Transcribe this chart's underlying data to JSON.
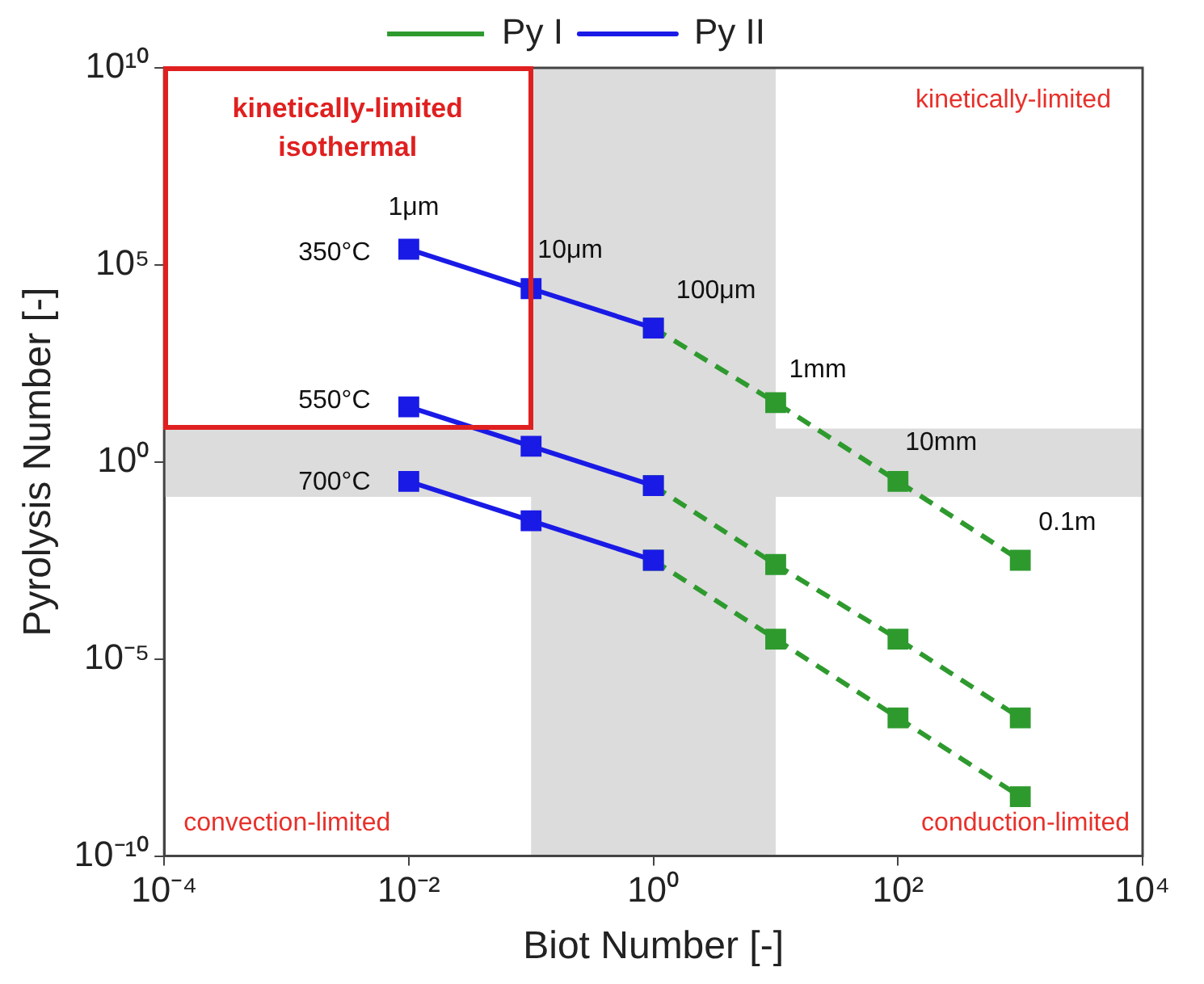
{
  "chart_data": {
    "type": "line",
    "xlabel": "Biot Number [-]",
    "ylabel": "Pyrolysis Number [-]",
    "log": "xy",
    "marker": "square",
    "legend": "top",
    "grid": false,
    "xlim": [
      0.0001,
      10000
    ],
    "xticks": [
      {
        "value": 0.0001,
        "label": "10⁻⁴"
      },
      {
        "value": 0.01,
        "label": "10⁻²"
      },
      {
        "value": 1,
        "label": "10⁰"
      },
      {
        "value": 100,
        "label": "10²"
      },
      {
        "value": 10000,
        "label": "10⁴"
      }
    ],
    "ylim": [
      1e-10,
      10000000000.0
    ],
    "yticks": [
      {
        "value": 1e-10,
        "label": "10⁻¹⁰"
      },
      {
        "value": 1e-05,
        "label": "10⁻⁵"
      },
      {
        "value": 1,
        "label": "10⁰"
      },
      {
        "value": 100000,
        "label": "10⁵"
      },
      {
        "value": 10000000000.0,
        "label": "10¹⁰"
      }
    ],
    "series": [
      {
        "name": "Py I",
        "color": "#2e9a2e",
        "line_style": "dashed",
        "x": [
          1,
          10,
          100,
          1000
        ],
        "values": [
          2500,
          32,
          0.32,
          0.0032
        ]
      },
      {
        "color": "#2e9a2e",
        "line_style": "dashed",
        "x": [
          1,
          10,
          100,
          1000
        ],
        "values": [
          0.25,
          0.0025,
          3.2e-05,
          3.2e-07
        ]
      },
      {
        "color": "#2e9a2e",
        "line_style": "dashed",
        "x": [
          1,
          10,
          100,
          1000
        ],
        "values": [
          0.0032,
          3.2e-05,
          3.2e-07,
          3.2e-09
        ]
      },
      {
        "name": "Py II",
        "color": "#1a1ae6",
        "line_style": "solid",
        "x": [
          0.01,
          0.1,
          1
        ],
        "values": [
          250000,
          25000,
          2500
        ]
      },
      {
        "color": "#1a1ae6",
        "line_style": "solid",
        "x": [
          0.01,
          0.1,
          1
        ],
        "values": [
          25,
          2.5,
          0.25
        ]
      },
      {
        "color": "#1a1ae6",
        "line_style": "solid",
        "x": [
          0.01,
          0.1,
          1
        ],
        "values": [
          0.32,
          0.032,
          0.0032
        ]
      }
    ],
    "bands": [
      {
        "axis": "x",
        "from": 0.1,
        "to": 10,
        "color": "#dcdcdc"
      },
      {
        "axis": "y",
        "from": 0.13,
        "to": 7,
        "color": "#dcdcdc"
      }
    ],
    "annotations": [
      "kinetically-limited isothermal",
      "kinetically-limited",
      "convection-limited",
      "conduction-limited",
      "350°C",
      "550°C",
      "700°C",
      "1μm",
      "10μm",
      "100μm",
      "1mm",
      "10mm",
      "0.1m"
    ]
  }
}
